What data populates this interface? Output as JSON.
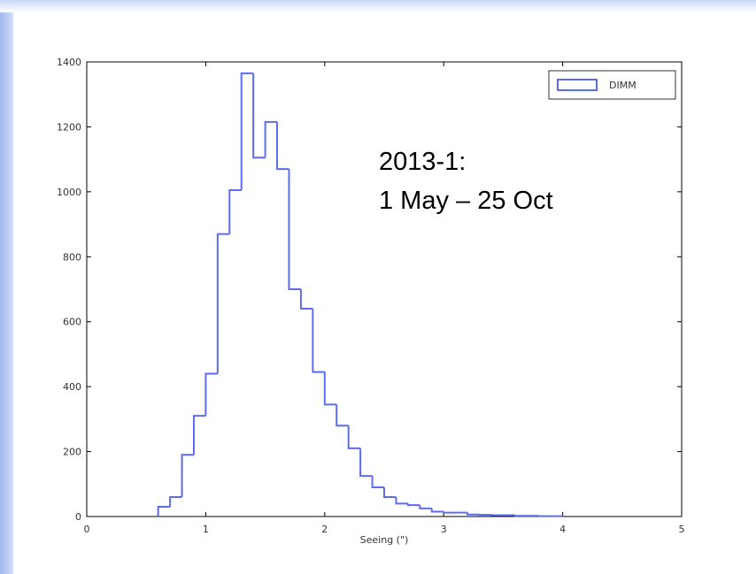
{
  "chart_data": {
    "type": "histogram",
    "xlabel": "Seeing (\")",
    "annotation": [
      "2013-1:",
      "1 May – 25 Oct"
    ],
    "bins": [
      0.6,
      0.7,
      0.8,
      0.9,
      1.0,
      1.1,
      1.2,
      1.3,
      1.4,
      1.5,
      1.6,
      1.7,
      1.8,
      1.9,
      2.0,
      2.1,
      2.2,
      2.3,
      2.4,
      2.5,
      2.6,
      2.7,
      2.8,
      2.9,
      3.0,
      3.1,
      3.2,
      3.3,
      3.4,
      3.5,
      3.6,
      3.7,
      3.8,
      3.9,
      4.0
    ],
    "series": [
      {
        "name": "DIMM",
        "color": "#5b6cf0",
        "values": [
          30,
          60,
          190,
          310,
          440,
          870,
          1005,
          1365,
          1105,
          1215,
          1070,
          700,
          640,
          445,
          345,
          280,
          210,
          125,
          90,
          60,
          40,
          35,
          25,
          15,
          12,
          12,
          6,
          5,
          4,
          4,
          2,
          2,
          1,
          1
        ]
      }
    ],
    "xlim": [
      0,
      5
    ],
    "xticks": [
      0,
      1,
      2,
      3,
      4,
      5
    ],
    "ylim": [
      0,
      1400
    ],
    "yticks": [
      0,
      200,
      400,
      600,
      800,
      1000,
      1200,
      1400
    ],
    "legend": "upper right"
  }
}
